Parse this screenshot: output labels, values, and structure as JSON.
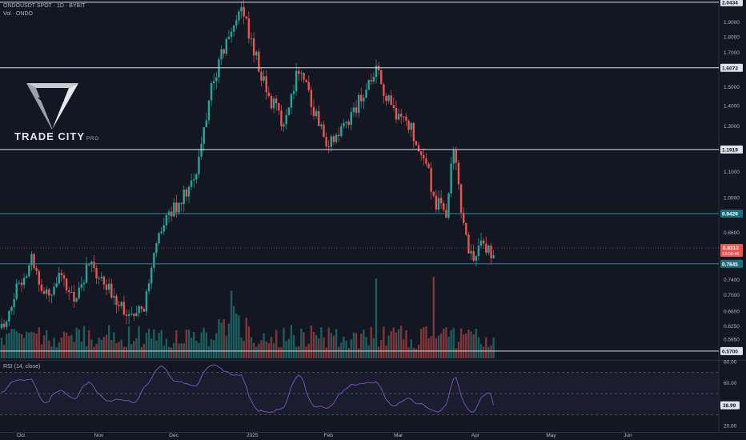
{
  "header": {
    "symbol_line": "ONDOUSDT SPOT · 1D · BYBIT",
    "volume_label": "Vol · ONDO"
  },
  "watermark": {
    "brand": "TRADE CITY",
    "suffix": "PRO"
  },
  "rsi": {
    "label": "RSI (14, close)",
    "value_label": "38.99",
    "value": 38.99
  },
  "colors": {
    "background": "#131722",
    "up": "#26a69a",
    "down": "#ef5350",
    "rsi_line": "#7e57c2",
    "grid": "#1e222d",
    "level_white": "#e0e3eb",
    "level_teal": "#2a8c9c"
  },
  "chart_data": {
    "type": "candlestick",
    "title": "ONDOUSDT SPOT · 1D · BYBIT",
    "y_scale": "log",
    "ylim": [
      0.555,
      2.06
    ],
    "x_tick_labels": [
      "Oct",
      "Nov",
      "Dec",
      "2025",
      "Feb",
      "Mar",
      "Apr",
      "May",
      "Jun"
    ],
    "y_tick_labels": [
      "1.9000",
      "1.8000",
      "1.7000",
      "1.5000",
      "1.4000",
      "1.3000",
      "1.1000",
      "1.0000",
      "0.8800",
      "0.7400",
      "0.7000",
      "0.6600",
      "0.6250",
      "0.5950",
      "0.5700"
    ],
    "levels": [
      {
        "label": "2.0434",
        "value": 2.0434,
        "style": "white"
      },
      {
        "label": "1.6073",
        "value": 1.6073,
        "style": "white"
      },
      {
        "label": "1.1919",
        "value": 1.1919,
        "style": "white"
      },
      {
        "label": "0.9429",
        "value": 0.9429,
        "style": "teal"
      },
      {
        "label": "0.7845",
        "value": 0.7845,
        "style": "teal"
      },
      {
        "label": "0.5700",
        "value": 0.57,
        "style": "white"
      }
    ],
    "last_price": {
      "label": "0.8313",
      "value": 0.8313,
      "countdown": "13:08:46"
    },
    "price_path": [
      {
        "day": 0,
        "price": 0.62
      },
      {
        "day": 7,
        "price": 0.73
      },
      {
        "day": 12,
        "price": 0.8
      },
      {
        "day": 17,
        "price": 0.7
      },
      {
        "day": 23,
        "price": 0.74
      },
      {
        "day": 29,
        "price": 0.69
      },
      {
        "day": 35,
        "price": 0.78
      },
      {
        "day": 41,
        "price": 0.72
      },
      {
        "day": 47,
        "price": 0.69
      },
      {
        "day": 53,
        "price": 0.63
      },
      {
        "day": 58,
        "price": 0.69
      },
      {
        "day": 64,
        "price": 0.9
      },
      {
        "day": 72,
        "price": 1.0
      },
      {
        "day": 78,
        "price": 1.07
      },
      {
        "day": 84,
        "price": 1.5
      },
      {
        "day": 91,
        "price": 1.8
      },
      {
        "day": 96,
        "price": 2.02
      },
      {
        "day": 101,
        "price": 1.7
      },
      {
        "day": 107,
        "price": 1.45
      },
      {
        "day": 113,
        "price": 1.3
      },
      {
        "day": 119,
        "price": 1.62
      },
      {
        "day": 125,
        "price": 1.38
      },
      {
        "day": 131,
        "price": 1.21
      },
      {
        "day": 137,
        "price": 1.29
      },
      {
        "day": 143,
        "price": 1.42
      },
      {
        "day": 150,
        "price": 1.58
      },
      {
        "day": 156,
        "price": 1.38
      },
      {
        "day": 162,
        "price": 1.33
      },
      {
        "day": 168,
        "price": 1.19
      },
      {
        "day": 174,
        "price": 0.98
      },
      {
        "day": 178,
        "price": 0.95
      },
      {
        "day": 181,
        "price": 1.18
      },
      {
        "day": 184,
        "price": 0.95
      },
      {
        "day": 188,
        "price": 0.8
      },
      {
        "day": 193,
        "price": 0.84
      },
      {
        "day": 197,
        "price": 0.82
      }
    ],
    "volume": {
      "units": "relative"
    },
    "rsi_series": {
      "name": "RSI (14, close)",
      "ylim": [
        20,
        80
      ],
      "ticks": [
        "80.00",
        "60.00",
        "20.00"
      ],
      "bands": [
        70,
        50,
        30
      ]
    }
  }
}
